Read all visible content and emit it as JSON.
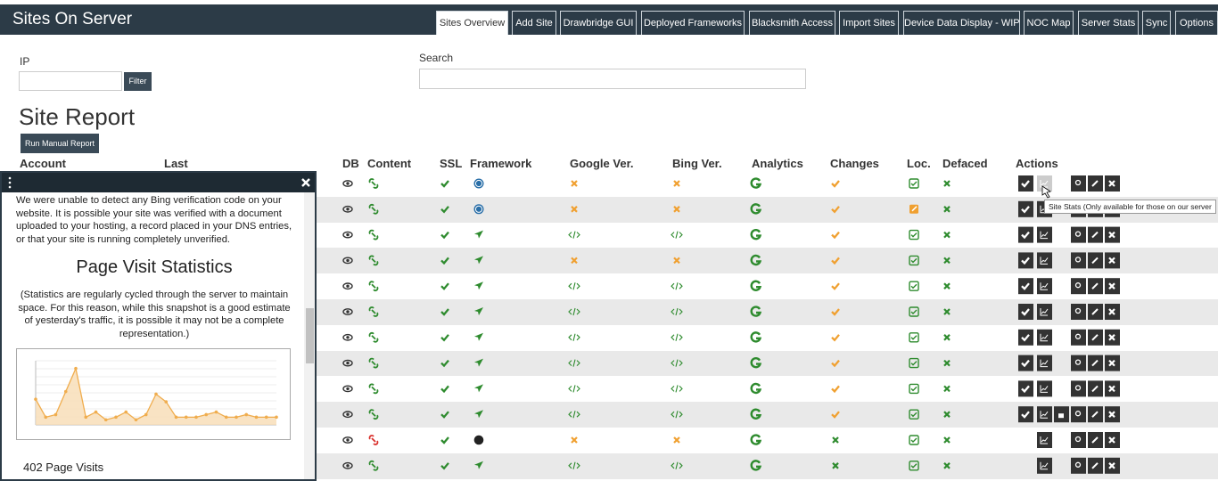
{
  "header": {
    "title": "Sites On Server",
    "tabs": [
      "Sites Overview",
      "Add Site",
      "Drawbridge GUI",
      "Deployed Frameworks",
      "Blacksmith Access",
      "Import Sites",
      "Device Data Display - WIP",
      "NOC Map",
      "Server Stats",
      "Sync",
      "Options"
    ]
  },
  "filter": {
    "ip_label": "IP",
    "filter_button": "Filter",
    "search_label": "Search"
  },
  "report": {
    "title": "Site Report",
    "run_button": "Run Manual Report",
    "columns": [
      "Account",
      "Last",
      "DB",
      "Content",
      "SSL",
      "Framework",
      "Google Ver.",
      "Bing Ver.",
      "Analytics",
      "Changes",
      "Loc.",
      "Defaced",
      "Actions"
    ]
  },
  "panel": {
    "message": "We were unable to detect any Bing verification code on your website. It is possible your site was verified with a document uploaded to your hosting, a record placed in your DNS entries, or that your site is running completely unverified.",
    "stats_title": "Page Visit Statistics",
    "stats_note": "(Statistics are regularly cycled through the server to maintain space. For this reason, while this snapshot is a good estimate of yesterday's traffic, it is possible it may not be a complete representation.)",
    "visit_chart": {
      "type": "line",
      "color": "#f0ad4e",
      "ylim": [
        0,
        25
      ],
      "values": [
        10,
        3,
        4,
        13,
        22,
        3,
        5,
        2,
        3,
        5,
        2,
        4,
        12,
        9,
        3,
        3,
        3,
        4,
        5,
        3,
        3,
        4,
        3,
        3,
        3
      ]
    },
    "visits": "402 Page Visits"
  },
  "tooltip": "Site Stats (Only available for those on our server"
}
